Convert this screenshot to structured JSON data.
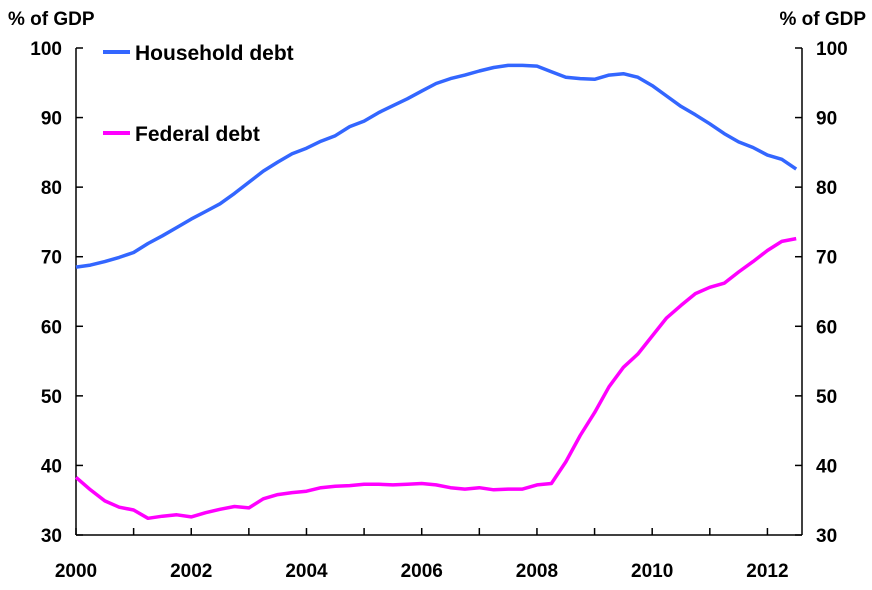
{
  "chart_data": {
    "type": "line",
    "title": "",
    "y_unit_left": "% of GDP",
    "y_unit_right": "% of GDP",
    "xlim": [
      2000,
      2012.6
    ],
    "ylim": [
      30,
      100
    ],
    "x_ticks": [
      "2000",
      "2002",
      "2004",
      "2006",
      "2008",
      "2010",
      "2012"
    ],
    "x_tick_values": [
      2000,
      2002,
      2004,
      2006,
      2008,
      2010,
      2012
    ],
    "y_ticks": [
      "30",
      "40",
      "50",
      "60",
      "70",
      "80",
      "90",
      "100"
    ],
    "y_tick_values": [
      30,
      40,
      50,
      60,
      70,
      80,
      90,
      100
    ],
    "grid": false,
    "legend_position": "top-left",
    "series": [
      {
        "name": "Household debt",
        "color": "#3366ff",
        "points": [
          [
            2000.0,
            68.5
          ],
          [
            2000.25,
            68.8
          ],
          [
            2000.5,
            69.3
          ],
          [
            2000.75,
            69.9
          ],
          [
            2001.0,
            70.6
          ],
          [
            2001.25,
            71.9
          ],
          [
            2001.5,
            73.0
          ],
          [
            2001.75,
            74.2
          ],
          [
            2002.0,
            75.4
          ],
          [
            2002.25,
            76.5
          ],
          [
            2002.5,
            77.6
          ],
          [
            2002.75,
            79.1
          ],
          [
            2003.0,
            80.7
          ],
          [
            2003.25,
            82.3
          ],
          [
            2003.5,
            83.6
          ],
          [
            2003.75,
            84.8
          ],
          [
            2004.0,
            85.6
          ],
          [
            2004.25,
            86.6
          ],
          [
            2004.5,
            87.4
          ],
          [
            2004.75,
            88.7
          ],
          [
            2005.0,
            89.5
          ],
          [
            2005.25,
            90.7
          ],
          [
            2005.5,
            91.7
          ],
          [
            2005.75,
            92.7
          ],
          [
            2006.0,
            93.8
          ],
          [
            2006.25,
            94.9
          ],
          [
            2006.5,
            95.6
          ],
          [
            2006.75,
            96.1
          ],
          [
            2007.0,
            96.7
          ],
          [
            2007.25,
            97.2
          ],
          [
            2007.5,
            97.5
          ],
          [
            2007.75,
            97.5
          ],
          [
            2008.0,
            97.4
          ],
          [
            2008.25,
            96.6
          ],
          [
            2008.5,
            95.8
          ],
          [
            2008.75,
            95.6
          ],
          [
            2009.0,
            95.5
          ],
          [
            2009.25,
            96.1
          ],
          [
            2009.5,
            96.3
          ],
          [
            2009.75,
            95.8
          ],
          [
            2010.0,
            94.6
          ],
          [
            2010.25,
            93.1
          ],
          [
            2010.5,
            91.6
          ],
          [
            2010.75,
            90.4
          ],
          [
            2011.0,
            89.1
          ],
          [
            2011.25,
            87.7
          ],
          [
            2011.5,
            86.5
          ],
          [
            2011.75,
            85.7
          ],
          [
            2012.0,
            84.6
          ],
          [
            2012.25,
            84.0
          ],
          [
            2012.5,
            82.6
          ]
        ]
      },
      {
        "name": "Federal debt",
        "color": "#ff00ff",
        "points": [
          [
            2000.0,
            38.3
          ],
          [
            2000.25,
            36.5
          ],
          [
            2000.5,
            34.9
          ],
          [
            2000.75,
            34.0
          ],
          [
            2001.0,
            33.6
          ],
          [
            2001.25,
            32.4
          ],
          [
            2001.5,
            32.7
          ],
          [
            2001.75,
            32.9
          ],
          [
            2002.0,
            32.6
          ],
          [
            2002.25,
            33.2
          ],
          [
            2002.5,
            33.7
          ],
          [
            2002.75,
            34.1
          ],
          [
            2003.0,
            33.9
          ],
          [
            2003.25,
            35.2
          ],
          [
            2003.5,
            35.8
          ],
          [
            2003.75,
            36.1
          ],
          [
            2004.0,
            36.3
          ],
          [
            2004.25,
            36.8
          ],
          [
            2004.5,
            37.0
          ],
          [
            2004.75,
            37.1
          ],
          [
            2005.0,
            37.3
          ],
          [
            2005.25,
            37.3
          ],
          [
            2005.5,
            37.2
          ],
          [
            2005.75,
            37.3
          ],
          [
            2006.0,
            37.4
          ],
          [
            2006.25,
            37.2
          ],
          [
            2006.5,
            36.8
          ],
          [
            2006.75,
            36.6
          ],
          [
            2007.0,
            36.8
          ],
          [
            2007.25,
            36.5
          ],
          [
            2007.5,
            36.6
          ],
          [
            2007.75,
            36.6
          ],
          [
            2008.0,
            37.2
          ],
          [
            2008.25,
            37.4
          ],
          [
            2008.5,
            40.5
          ],
          [
            2008.75,
            44.3
          ],
          [
            2009.0,
            47.6
          ],
          [
            2009.25,
            51.3
          ],
          [
            2009.5,
            54.1
          ],
          [
            2009.75,
            56.0
          ],
          [
            2010.0,
            58.6
          ],
          [
            2010.25,
            61.2
          ],
          [
            2010.5,
            63.0
          ],
          [
            2010.75,
            64.7
          ],
          [
            2011.0,
            65.6
          ],
          [
            2011.25,
            66.2
          ],
          [
            2011.5,
            67.8
          ],
          [
            2011.75,
            69.3
          ],
          [
            2012.0,
            70.9
          ],
          [
            2012.25,
            72.2
          ],
          [
            2012.5,
            72.6
          ]
        ]
      }
    ]
  }
}
